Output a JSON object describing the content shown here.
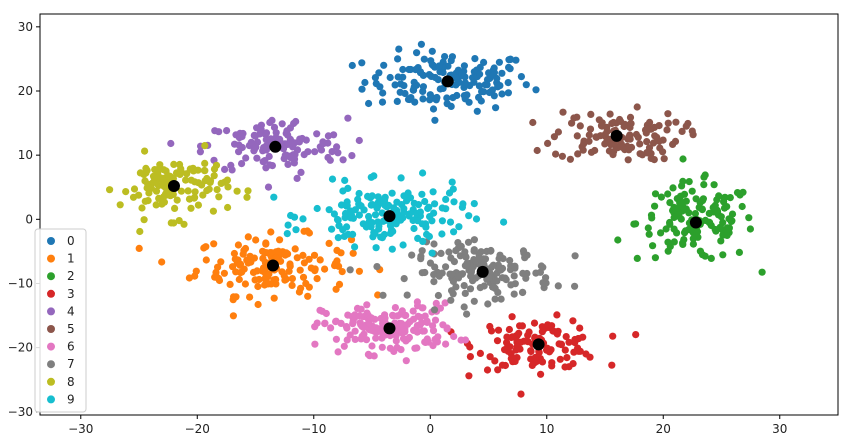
{
  "chart_data": {
    "type": "scatter",
    "title": "",
    "xlabel": "",
    "ylabel": "",
    "xlim": [
      -33.5,
      35
    ],
    "ylim": [
      -30.5,
      32
    ],
    "xticks": [
      -30,
      -20,
      -10,
      0,
      10,
      20,
      30
    ],
    "yticks": [
      -30,
      -20,
      -10,
      0,
      10,
      20,
      30
    ],
    "grid": false,
    "legend_position": "lower-left",
    "centroid_color": "#000000",
    "series": [
      {
        "name": "0",
        "color": "#1f77b4",
        "center": [
          1.5,
          21.5
        ],
        "spread": [
          6.5,
          4.2
        ],
        "count": 150
      },
      {
        "name": "1",
        "color": "#ff7f0e",
        "center": [
          -13.5,
          -7.2
        ],
        "spread": [
          6.0,
          4.2
        ],
        "count": 150
      },
      {
        "name": "2",
        "color": "#2ca02c",
        "center": [
          22.8,
          -0.5
        ],
        "spread": [
          4.6,
          5.5
        ],
        "count": 140
      },
      {
        "name": "3",
        "color": "#d62728",
        "center": [
          9.3,
          -19.5
        ],
        "spread": [
          4.8,
          3.5
        ],
        "count": 120
      },
      {
        "name": "4",
        "color": "#9467bd",
        "center": [
          -13.3,
          11.3
        ],
        "spread": [
          5.6,
          4.0
        ],
        "count": 130
      },
      {
        "name": "5",
        "color": "#8c564b",
        "center": [
          16.0,
          13.0
        ],
        "spread": [
          5.0,
          3.5
        ],
        "count": 120
      },
      {
        "name": "6",
        "color": "#e377c2",
        "center": [
          -3.5,
          -17.0
        ],
        "spread": [
          5.2,
          3.5
        ],
        "count": 160
      },
      {
        "name": "7",
        "color": "#7f7f7f",
        "center": [
          4.5,
          -8.2
        ],
        "spread": [
          5.5,
          3.8
        ],
        "count": 160
      },
      {
        "name": "8",
        "color": "#bcbd22",
        "center": [
          -22.0,
          5.2
        ],
        "spread": [
          4.2,
          4.4
        ],
        "count": 120
      },
      {
        "name": "9",
        "color": "#17becf",
        "center": [
          -3.5,
          0.5
        ],
        "spread": [
          6.0,
          4.2
        ],
        "count": 170
      }
    ],
    "centroids": [
      {
        "x": 1.5,
        "y": 21.5
      },
      {
        "x": -13.5,
        "y": -7.2
      },
      {
        "x": 22.8,
        "y": -0.5
      },
      {
        "x": 9.3,
        "y": -19.5
      },
      {
        "x": -13.3,
        "y": 11.3
      },
      {
        "x": 16.0,
        "y": 13.0
      },
      {
        "x": -3.5,
        "y": -17.0
      },
      {
        "x": 4.5,
        "y": -8.2
      },
      {
        "x": -22.0,
        "y": 5.2
      },
      {
        "x": -3.5,
        "y": 0.5
      }
    ]
  }
}
